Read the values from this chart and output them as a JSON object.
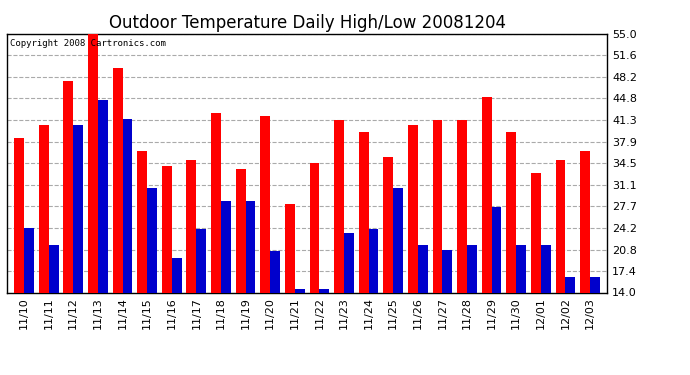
{
  "title": "Outdoor Temperature Daily High/Low 20081204",
  "copyright": "Copyright 2008 Cartronics.com",
  "categories": [
    "11/10",
    "11/11",
    "11/12",
    "11/13",
    "11/14",
    "11/15",
    "11/16",
    "11/17",
    "11/18",
    "11/19",
    "11/20",
    "11/21",
    "11/22",
    "11/23",
    "11/24",
    "11/25",
    "11/26",
    "11/27",
    "11/28",
    "11/29",
    "11/30",
    "12/01",
    "12/02",
    "12/03"
  ],
  "highs": [
    38.5,
    40.5,
    47.5,
    55.0,
    49.5,
    36.5,
    34.0,
    35.0,
    42.5,
    33.5,
    42.0,
    28.0,
    34.5,
    41.3,
    39.5,
    35.5,
    40.5,
    41.3,
    41.3,
    45.0,
    39.5,
    33.0,
    35.0,
    36.5
  ],
  "lows": [
    24.2,
    21.5,
    40.5,
    44.5,
    41.5,
    30.5,
    19.5,
    24.0,
    28.5,
    28.5,
    20.5,
    14.5,
    14.5,
    23.5,
    24.0,
    30.5,
    21.5,
    20.8,
    21.5,
    27.5,
    21.5,
    21.5,
    16.5,
    16.5
  ],
  "high_color": "#ff0000",
  "low_color": "#0000cc",
  "background_color": "#ffffff",
  "plot_background": "#ffffff",
  "grid_color": "#aaaaaa",
  "ylim_min": 14.0,
  "ylim_max": 55.0,
  "yticks": [
    14.0,
    17.4,
    20.8,
    24.2,
    27.7,
    31.1,
    34.5,
    37.9,
    41.3,
    44.8,
    48.2,
    51.6,
    55.0
  ],
  "title_fontsize": 12,
  "tick_fontsize": 8,
  "bar_width": 0.4
}
